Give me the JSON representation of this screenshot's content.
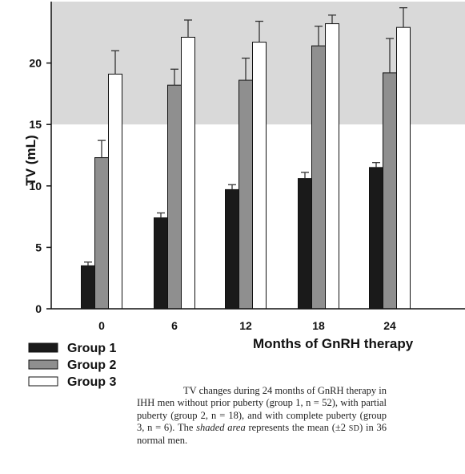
{
  "chart_data": {
    "type": "bar",
    "ylabel": "TV  (mL)",
    "xlabel": "Months of GnRH therapy",
    "categories": [
      "0",
      "6",
      "12",
      "18",
      "24"
    ],
    "ylim": [
      0,
      25
    ],
    "yticks": [
      "0",
      "5",
      "10",
      "15",
      "20"
    ],
    "shaded_band": [
      15,
      25
    ],
    "error_bars": "positive only",
    "series": [
      {
        "name": "Group 1",
        "color": "#1a1a1a",
        "values": [
          3.5,
          7.4,
          9.7,
          10.6,
          11.5
        ],
        "errors": [
          0.3,
          0.4,
          0.4,
          0.5,
          0.4
        ]
      },
      {
        "name": "Group 2",
        "color": "#8f8f8f",
        "values": [
          12.3,
          18.2,
          18.6,
          21.4,
          19.2
        ],
        "errors": [
          1.4,
          1.3,
          1.8,
          1.6,
          2.8
        ]
      },
      {
        "name": "Group 3",
        "color": "#ffffff",
        "values": [
          19.1,
          22.1,
          21.7,
          23.2,
          22.9
        ],
        "errors": [
          1.9,
          1.4,
          1.7,
          0.7,
          1.6
        ]
      }
    ]
  },
  "caption": {
    "part1": "TV changes during 24 months of GnRH therapy in IHH men without prior puberty (group 1, n = 52), with partial puberty (group 2, n = 18), and with complete puberty (group 3, n = 6). The ",
    "italic": "shaded area",
    "part2": " represents the mean (±2 ",
    "sd": "SD",
    "part3": ") in 36 normal men."
  }
}
